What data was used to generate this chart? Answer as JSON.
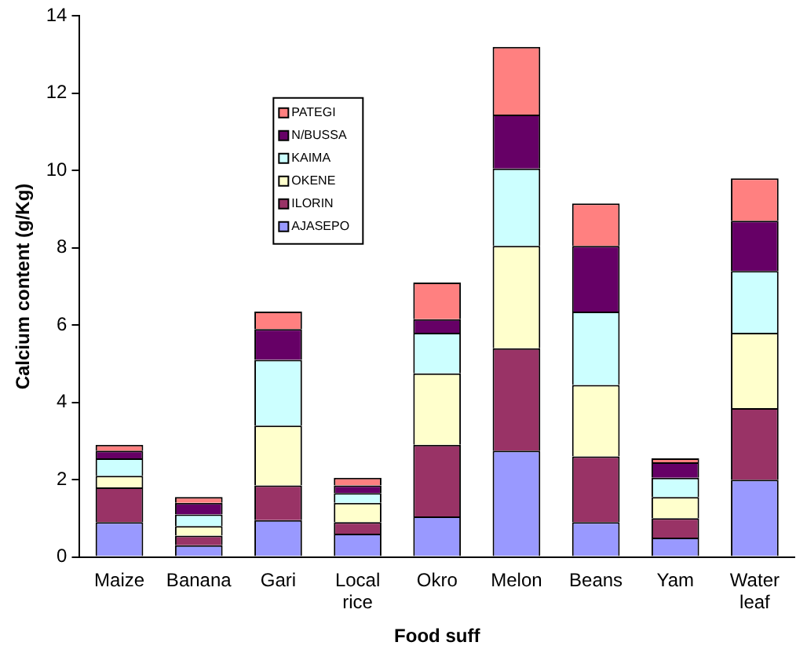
{
  "chart_data": {
    "type": "bar",
    "stacked": true,
    "xlabel": "Food suff",
    "ylabel": "Calcium content (g/Kg)",
    "categories": [
      "Maize",
      "Banana",
      "Gari",
      "Local rice",
      "Okro",
      "Melon",
      "Beans",
      "Yam",
      "Water leaf"
    ],
    "ylim": [
      0,
      14
    ],
    "yticks": [
      0,
      2,
      4,
      6,
      8,
      10,
      12,
      14
    ],
    "grid": false,
    "legend": "top left",
    "series": [
      {
        "name": "AJASEPO",
        "color": "#9999ff",
        "values": [
          0.9,
          0.3,
          0.95,
          0.6,
          1.05,
          2.75,
          0.9,
          0.5,
          2.0
        ]
      },
      {
        "name": "ILORIN",
        "color": "#993366",
        "values": [
          0.9,
          0.25,
          0.9,
          0.3,
          1.85,
          2.65,
          1.7,
          0.5,
          1.85
        ]
      },
      {
        "name": "OKENE",
        "color": "#ffffcc",
        "values": [
          0.3,
          0.25,
          1.55,
          0.5,
          1.85,
          2.65,
          1.85,
          0.55,
          1.95
        ]
      },
      {
        "name": "KAIMA",
        "color": "#ccffff",
        "values": [
          0.45,
          0.3,
          1.7,
          0.25,
          1.05,
          2.0,
          1.9,
          0.5,
          1.6
        ]
      },
      {
        "name": "N/BUSSA",
        "color": "#660066",
        "values": [
          0.2,
          0.3,
          0.8,
          0.2,
          0.35,
          1.4,
          1.7,
          0.4,
          1.3
        ]
      },
      {
        "name": "PATEGI",
        "color": "#ff8080",
        "values": [
          0.15,
          0.15,
          0.45,
          0.2,
          0.95,
          1.75,
          1.1,
          0.1,
          1.1
        ]
      }
    ]
  }
}
